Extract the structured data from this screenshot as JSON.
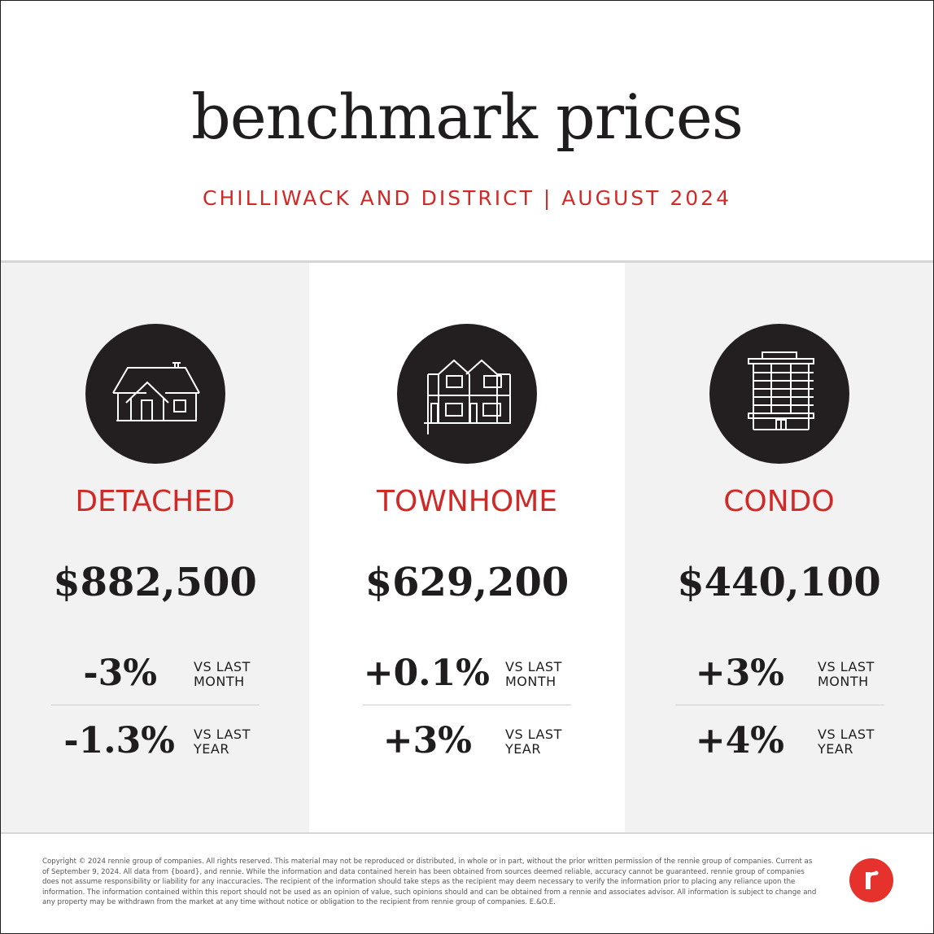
{
  "header": {
    "title": "benchmark prices",
    "subtitle": "CHILLIWACK AND DISTRICT | AUGUST 2024"
  },
  "categories": [
    {
      "type": "DETACHED",
      "icon": "house-icon",
      "price": "$882,500",
      "month_change": "-3%",
      "month_label_1": "VS LAST",
      "month_label_2": "MONTH",
      "year_change": "-1.3%",
      "year_label_1": "VS LAST",
      "year_label_2": "YEAR"
    },
    {
      "type": "TOWNHOME",
      "icon": "townhouse-icon",
      "price": "$629,200",
      "month_change": "+0.1%",
      "month_label_1": "VS LAST",
      "month_label_2": "MONTH",
      "year_change": "+3%",
      "year_label_1": "VS LAST",
      "year_label_2": "YEAR"
    },
    {
      "type": "CONDO",
      "icon": "condo-building-icon",
      "price": "$440,100",
      "month_change": "+3%",
      "month_label_1": "VS LAST",
      "month_label_2": "MONTH",
      "year_change": "+4%",
      "year_label_1": "VS LAST",
      "year_label_2": "YEAR"
    }
  ],
  "footer": {
    "disclaimer": "Copyright © 2024 rennie group of companies. All rights reserved. This material may not be reproduced or distributed, in whole or in part, without the prior written permission of the rennie group of companies. Current as of September 9, 2024. All data from {board}, and rennie. While the information and data contained herein has been obtained from sources deemed reliable, accuracy cannot be guaranteed. rennie group of companies does not assume responsibility or liability for any inaccuracies. The recipient of the information should take steps as the recipient may deem necessary to verify the information prior to placing any reliance upon the information. The information contained within this report should not be used as an opinion of value, such opinions should and can be obtained from a rennie and associates advisor. All information is subject to change and any property may be withdrawn from the market at any time without notice or obligation to the recipient from rennie group of companies. E.&O.E.",
    "logo": "rennie-logo-icon"
  },
  "colors": {
    "accent": "#cf2a27",
    "logo": "#e5322d",
    "dark": "#231f20",
    "panel_grey": "#f2f2f2"
  }
}
